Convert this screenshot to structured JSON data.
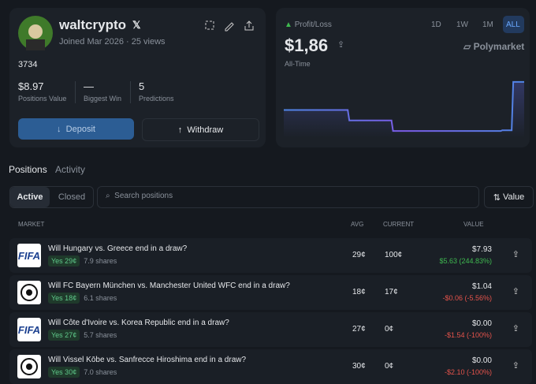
{
  "profile": {
    "name": "waltcrypto",
    "joined": "Joined Mar 2026",
    "views": "25 views",
    "bio": "3734",
    "stats": [
      {
        "value": "$8.97",
        "label": "Positions Value"
      },
      {
        "value": "—",
        "label": "Biggest Win"
      },
      {
        "value": "5",
        "label": "Predictions"
      }
    ],
    "deposit": "Deposit",
    "withdraw": "Withdraw"
  },
  "pnl": {
    "label": "Profit/Loss",
    "ranges": [
      "1D",
      "1W",
      "1M",
      "ALL"
    ],
    "value": "$1,86",
    "period": "All-Time",
    "brand": "Polymarket",
    "chart": {
      "type": "line",
      "values": [
        60,
        60,
        60,
        60,
        60,
        60,
        45,
        45,
        45,
        45,
        30,
        30,
        30,
        30,
        30,
        30,
        30,
        30,
        30,
        30,
        31,
        100,
        100
      ],
      "ylim": [
        20,
        110
      ]
    }
  },
  "tabs": [
    "Positions",
    "Activity"
  ],
  "filters": [
    "Active",
    "Closed"
  ],
  "search_placeholder": "Search positions",
  "sort": "Value",
  "table": {
    "headers": [
      "MARKET",
      "AVG",
      "CURRENT",
      "VALUE"
    ],
    "rows": [
      {
        "icon": "FIFA",
        "title": "Will Hungary vs. Greece end in a draw?",
        "outcome": "Yes 29¢",
        "shares": "7.9 shares",
        "avg": "29¢",
        "current": "100¢",
        "value": "$7.93",
        "pnl": "$5.63 (244.83%)"
      },
      {
        "title": "Will FC Bayern München vs. Manchester United WFC end in a draw?",
        "outcome": "Yes 18¢",
        "shares": "6.1 shares",
        "avg": "18¢",
        "current": "17¢",
        "value": "$1.04",
        "pnl": "-$0.06 (-5.56%)"
      },
      {
        "icon": "FIFA",
        "title": "Will Côte d'Ivoire vs. Korea Republic end in a draw?",
        "outcome": "Yes 27¢",
        "shares": "5.7 shares",
        "avg": "27¢",
        "current": "0¢",
        "value": "$0.00",
        "pnl": "-$1.54 (-100%)"
      },
      {
        "title": "Will Vissel Kōbe vs. Sanfrecce Hiroshima end in a draw?",
        "outcome": "Yes 30¢",
        "shares": "7.0 shares",
        "avg": "30¢",
        "current": "0¢",
        "value": "$0.00",
        "pnl": "-$2.10 (-100%)"
      }
    ]
  }
}
